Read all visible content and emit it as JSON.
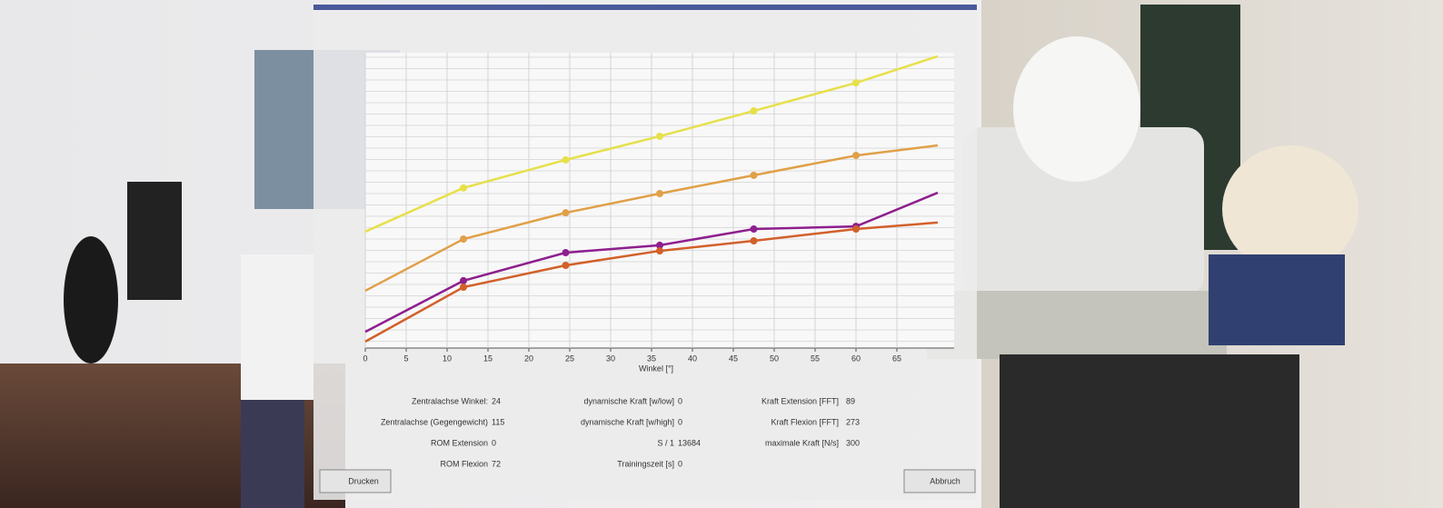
{
  "chart_data": {
    "type": "line",
    "x_label": "Winkel [°]",
    "x": [
      0,
      12,
      24.5,
      36,
      47.5,
      60,
      70
    ],
    "xlim": [
      0,
      72
    ],
    "xticks": [
      0,
      5,
      10,
      15,
      20,
      25,
      30,
      35,
      40,
      45,
      50,
      55,
      60,
      65
    ],
    "ylim": [
      0,
      100
    ],
    "grid": true,
    "series": [
      {
        "color": "#e6e04a",
        "values": [
          39.4,
          54.2,
          63.7,
          71.7,
          80.3,
          89.8,
          98.8
        ]
      },
      {
        "color": "#e0a048",
        "values": [
          19.4,
          36.9,
          45.8,
          52.3,
          58.5,
          65.2,
          68.6
        ]
      },
      {
        "color": "#8e1f8e",
        "values": [
          5.5,
          22.8,
          32.3,
          34.8,
          40.3,
          41.2,
          52.6
        ]
      },
      {
        "color": "#d2602a",
        "values": [
          2.2,
          20.6,
          28,
          32.9,
          36.3,
          40.3,
          42.5
        ]
      }
    ]
  },
  "info": {
    "columns": [
      [
        [
          "Zentralachse Winkel:",
          24
        ],
        [
          "Zentralachse (Gegengewicht)",
          115
        ],
        [
          "ROM Extension",
          0
        ],
        [
          "ROM Flexion",
          72
        ]
      ],
      [
        [
          "dynamische Kraft [w/low]",
          0
        ],
        [
          "dynamische Kraft [w/high]",
          0
        ],
        [
          "S / 1",
          13684
        ],
        [
          "Trainingszeit [s]",
          0
        ]
      ],
      [
        [
          "Kraft Extension [FFT]",
          89
        ],
        [
          "Kraft Flexion [FFT]",
          273
        ],
        [
          "maximale Kraft [N/s]",
          300
        ]
      ]
    ]
  },
  "buttons": [
    "Drucken",
    "Abbruch"
  ]
}
